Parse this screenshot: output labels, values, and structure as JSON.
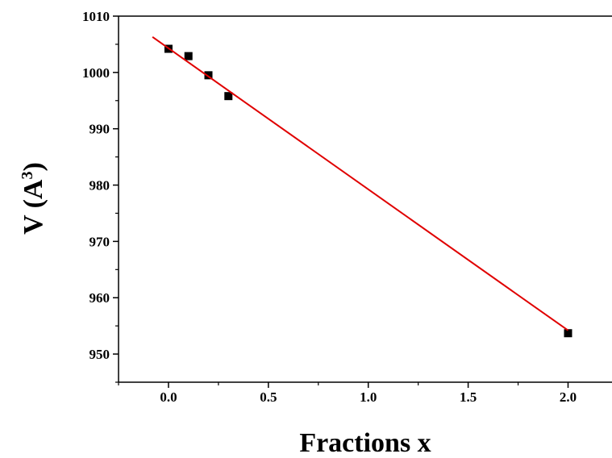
{
  "chart_data": {
    "type": "scatter",
    "xlabel": "Fractions x",
    "ylabel": {
      "main": "V (A",
      "superscript": "3",
      "close": ")"
    },
    "xlim": [
      -0.25,
      2.22
    ],
    "ylim": [
      945,
      1010
    ],
    "x_ticks": [
      0.0,
      0.5,
      1.0,
      1.5,
      2.0
    ],
    "x_tick_labels": [
      "0.0",
      "0.5",
      "1.0",
      "1.5",
      "2.0"
    ],
    "y_ticks": [
      950,
      960,
      970,
      980,
      990,
      1000,
      1010
    ],
    "y_tick_labels": [
      "950",
      "960",
      "970",
      "980",
      "990",
      "1000",
      "1010"
    ],
    "grid": false,
    "series": [
      {
        "kind": "points",
        "marker": "square",
        "color": "#000000",
        "x": [
          0.0,
          0.1,
          0.2,
          0.3,
          2.0
        ],
        "y": [
          1004.2,
          1002.9,
          999.5,
          995.8,
          953.7
        ]
      },
      {
        "kind": "fit-line",
        "color": "#e00000",
        "x": [
          -0.08,
          2.0
        ],
        "y": [
          1006.3,
          954.2
        ]
      }
    ]
  }
}
